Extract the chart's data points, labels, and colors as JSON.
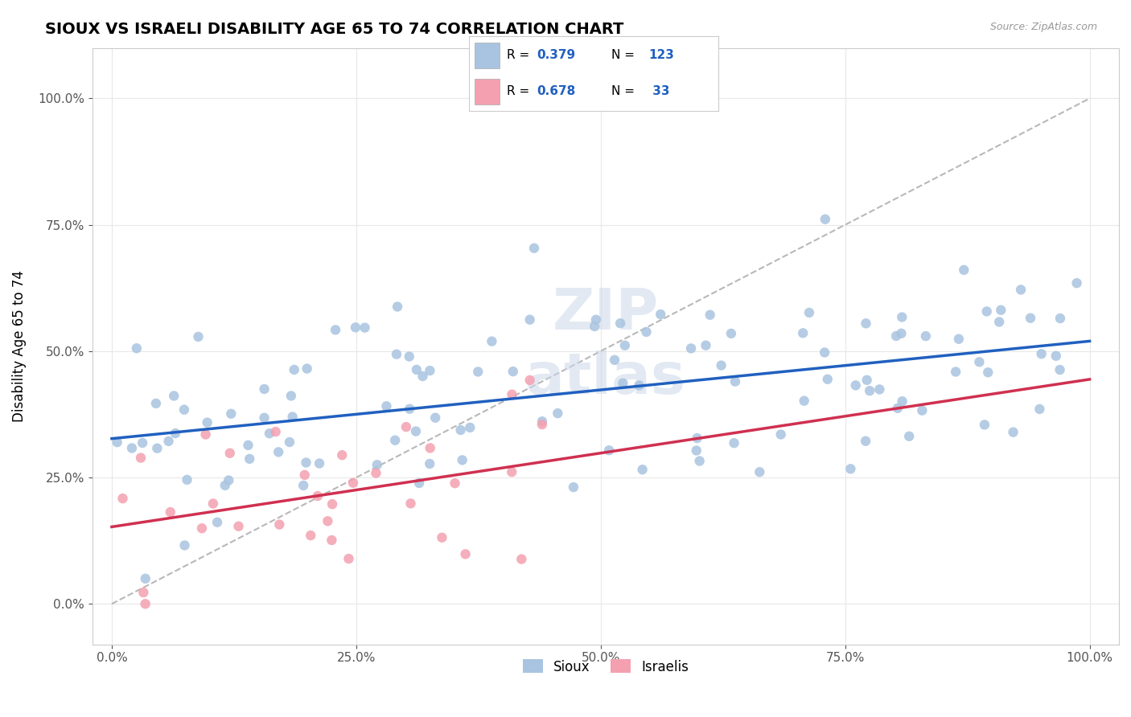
{
  "title": "SIOUX VS ISRAELI DISABILITY AGE 65 TO 74 CORRELATION CHART",
  "source": "Source: ZipAtlas.com",
  "ylabel": "Disability Age 65 to 74",
  "r_sioux": 0.379,
  "n_sioux": 123,
  "r_israeli": 0.678,
  "n_israeli": 33,
  "blue_color": "#a8c4e0",
  "pink_color": "#f4a0b0",
  "blue_line_color": "#2060c0",
  "pink_line_color": "#d03050",
  "gray_dash_color": "#b8b8b8"
}
